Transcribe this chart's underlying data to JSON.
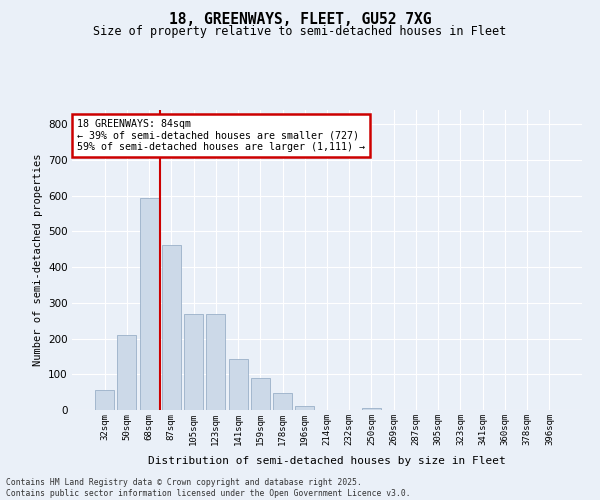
{
  "title_line1": "18, GREENWAYS, FLEET, GU52 7XG",
  "title_line2": "Size of property relative to semi-detached houses in Fleet",
  "xlabel": "Distribution of semi-detached houses by size in Fleet",
  "ylabel": "Number of semi-detached properties",
  "footer_line1": "Contains HM Land Registry data © Crown copyright and database right 2025.",
  "footer_line2": "Contains public sector information licensed under the Open Government Licence v3.0.",
  "property_label": "18 GREENWAYS: 84sqm",
  "annotation_line1": "← 39% of semi-detached houses are smaller (727)",
  "annotation_line2": "59% of semi-detached houses are larger (1,111) →",
  "bar_categories": [
    "32sqm",
    "50sqm",
    "68sqm",
    "87sqm",
    "105sqm",
    "123sqm",
    "141sqm",
    "159sqm",
    "178sqm",
    "196sqm",
    "214sqm",
    "232sqm",
    "250sqm",
    "269sqm",
    "287sqm",
    "305sqm",
    "323sqm",
    "341sqm",
    "360sqm",
    "378sqm",
    "396sqm"
  ],
  "bar_values": [
    55,
    210,
    595,
    462,
    270,
    270,
    143,
    90,
    48,
    10,
    0,
    0,
    5,
    0,
    0,
    0,
    0,
    0,
    0,
    0,
    0
  ],
  "bar_color": "#ccd9e8",
  "bar_edge_color": "#9ab0c8",
  "vline_color": "#cc0000",
  "vline_x": 2.5,
  "ylim": [
    0,
    840
  ],
  "yticks": [
    0,
    100,
    200,
    300,
    400,
    500,
    600,
    700,
    800
  ],
  "bg_color": "#eaf0f8",
  "grid_color": "#ffffff",
  "ann_box_bg": "#ffffff",
  "ann_box_edge": "#cc0000"
}
